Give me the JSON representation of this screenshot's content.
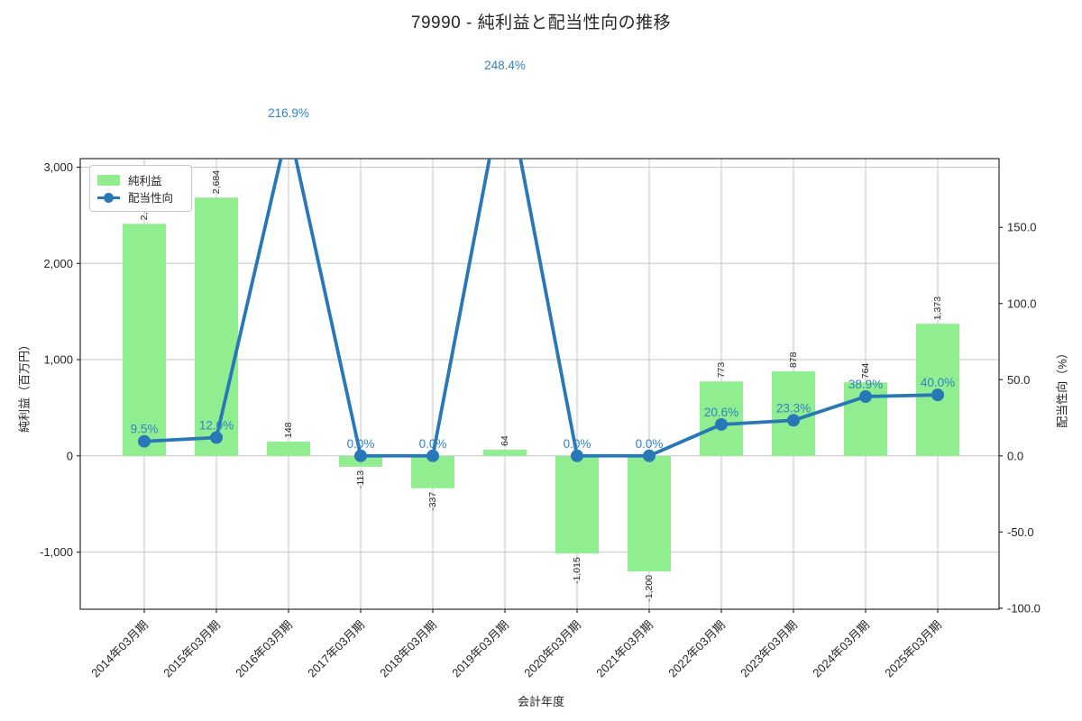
{
  "page_title": "79990 - 純利益と配当性向の推移",
  "chart_data": {
    "type": "bar+line",
    "title": "79990 - 純利益と配当性向の推移",
    "xlabel": "会計年度",
    "ylabel_left": "純利益（百万円）",
    "ylabel_right": "配当性向（%）",
    "grid": true,
    "legend_position": "upper left",
    "categories": [
      "2014年03月期",
      "2015年03月期",
      "2016年03月期",
      "2017年03月期",
      "2018年03月期",
      "2019年03月期",
      "2020年03月期",
      "2021年03月期",
      "2022年03月期",
      "2023年03月期",
      "2024年03月期",
      "2025年03月期"
    ],
    "series": [
      {
        "name": "純利益",
        "type": "bar",
        "axis": "left",
        "color": "#90ee90",
        "values": [
          2411,
          2684,
          148,
          -113,
          -337,
          64,
          -1015,
          -1200,
          773,
          878,
          764,
          1373
        ],
        "labels": [
          "2,411",
          "2,684",
          "148",
          "-113",
          "-337",
          "64",
          "-1,015",
          "-1,200",
          "773",
          "878",
          "764",
          "1,373"
        ]
      },
      {
        "name": "配当性向",
        "type": "line",
        "axis": "right",
        "color": "#2878b8",
        "label_color": "#3083c3",
        "values": [
          9.5,
          12.0,
          216.9,
          0.0,
          0.0,
          248.4,
          0.0,
          0.0,
          20.6,
          23.3,
          38.9,
          40.0
        ],
        "labels": [
          "9.5%",
          "12.0%",
          "216.9%",
          "0.0%",
          "0.0%",
          "248.4%",
          "0.0%",
          "0.0%",
          "20.6%",
          "23.3%",
          "38.9%",
          "40.0%"
        ]
      }
    ],
    "left_axis": {
      "min": -1594,
      "max": 3089,
      "ticks": [
        -1000,
        0,
        1000,
        2000,
        3000
      ],
      "tick_labels": [
        "-1,000",
        "0",
        "1,000",
        "2,000",
        "3,000"
      ]
    },
    "right_axis": {
      "min": -100.7,
      "max": 195.1,
      "ticks": [
        -100,
        -50,
        0,
        50,
        100,
        150
      ],
      "tick_labels": [
        "-100.0",
        "-50.0",
        "0.0",
        "50.0",
        "100.0",
        "150.0"
      ]
    },
    "colors": {
      "grid": "#c6c6c6",
      "spine": "#2b2b2b",
      "text": "#262626"
    }
  }
}
